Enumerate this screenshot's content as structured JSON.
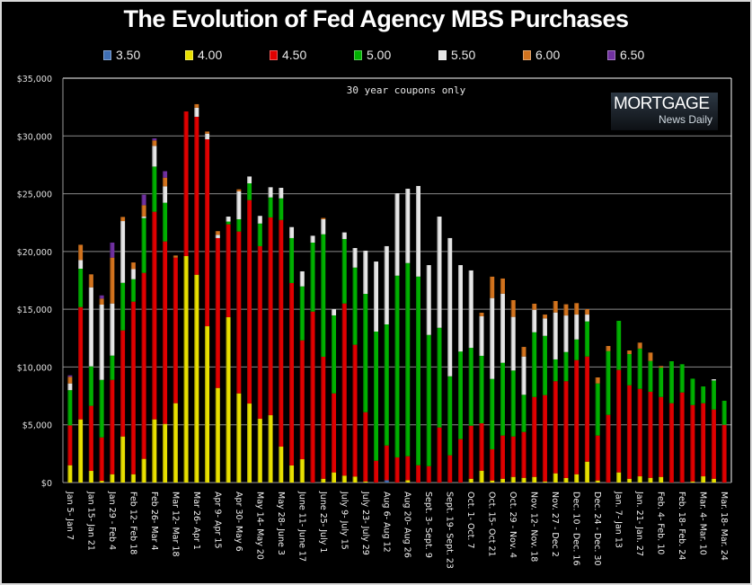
{
  "chart_data": {
    "type": "bar",
    "stacked": true,
    "title": "The Evolution of Fed Agency MBS Purchases",
    "annotation": "30 year coupons only",
    "logo": {
      "line1": "MORTGAGE",
      "line2": "News Daily"
    },
    "xlabel": "",
    "ylabel": "",
    "ylim": [
      0,
      35000
    ],
    "yticks": [
      0,
      5000,
      10000,
      15000,
      20000,
      25000,
      30000,
      35000
    ],
    "ytick_labels": [
      "$0",
      "$5,000",
      "$10,000",
      "$15,000",
      "$20,000",
      "$25,000",
      "$30,000",
      "$35,000"
    ],
    "grid": true,
    "legend_position": "top",
    "x_labels": [
      "Jan 5- Jan 7",
      "Jan 15- Jan 21",
      "Jan 29 - Feb 4",
      "Feb 12- Feb 18",
      "Feb 26- Mar 4",
      "Mar 12- Mar 18",
      "Mar 26- Apr 1",
      "Apr 9- Apr 15",
      "Apr 30- May 6",
      "May 14- May 20",
      "May 28- June 3",
      "June 11- June 17",
      "June 25- July 1",
      "July 9- July 15",
      "July 23- July 29",
      "Aug 6- Aug 12",
      "Aug 20- Aug 26",
      "Sept. 3- Sept. 9",
      "Sept. 19- Sept. 23",
      "Oct. 1- Oct. 7",
      "Oct. 15- Oct 21",
      "Oct. 29 - Nov. 4",
      "Nov. 12- Nov. 18",
      "Nov. 27 - Dec 2",
      "Dec. 10 - Dec. 16",
      "Dec. 24 - Dec. 30",
      "Jan. 7- Jan 13",
      "Jan. 21- Jan. 27",
      "Feb. 4- Feb. 10",
      "Feb. 18- Feb. 24",
      "Mar. 4- Mar. 10",
      "Mar. 18- Mar. 24"
    ],
    "label_every": 2,
    "bar_count": 63,
    "series": [
      {
        "name": "3.50",
        "color": "#3f6fb4",
        "values": [
          0,
          0,
          0,
          0,
          0,
          0,
          0,
          0,
          0,
          0,
          0,
          0,
          0,
          0,
          0,
          0,
          0,
          0,
          0,
          0,
          0,
          0,
          0,
          0,
          0,
          0,
          0,
          0,
          0,
          0,
          200,
          0,
          0,
          0,
          0,
          0,
          0,
          0,
          0,
          0,
          0,
          0,
          0,
          0,
          0,
          0,
          0,
          0,
          0,
          0,
          0,
          0,
          0,
          0,
          0,
          0,
          0,
          0,
          0,
          0,
          0,
          0,
          0
        ]
      },
      {
        "name": "4.00",
        "color": "#e8e000",
        "values": [
          1500,
          5470,
          1010,
          150,
          720,
          3990,
          720,
          2050,
          5470,
          5080,
          6870,
          19600,
          17990,
          13530,
          8190,
          14310,
          7720,
          6840,
          5520,
          5830,
          3110,
          1480,
          2020,
          0,
          330,
          880,
          600,
          520,
          100,
          0,
          0,
          0,
          200,
          0,
          0,
          0,
          0,
          0,
          330,
          1030,
          180,
          330,
          490,
          410,
          490,
          100,
          800,
          390,
          720,
          1810,
          180,
          0,
          880,
          330,
          540,
          410,
          490,
          0,
          0,
          100,
          540,
          330,
          0
        ]
      },
      {
        "name": "4.50",
        "color": "#e00000",
        "values": [
          3450,
          9720,
          5630,
          3760,
          8170,
          9180,
          14940,
          16100,
          17970,
          15790,
          12600,
          12520,
          13670,
          16180,
          12970,
          8040,
          14010,
          17610,
          14940,
          17120,
          19620,
          15790,
          10290,
          14800,
          10560,
          6840,
          14900,
          11410,
          5990,
          1890,
          3010,
          2180,
          2080,
          1500,
          1420,
          4770,
          2360,
          3760,
          4590,
          4100,
          2700,
          3740,
          3500,
          3970,
          6920,
          7470,
          7970,
          8380,
          9880,
          9100,
          3890,
          5860,
          8870,
          8090,
          7570,
          7450,
          6920,
          6870,
          7800,
          6610,
          6330,
          5990,
          5000
        ]
      },
      {
        "name": "5.00",
        "color": "#00b000",
        "values": [
          3050,
          3320,
          3420,
          4980,
          2100,
          4120,
          1940,
          4740,
          3910,
          3350,
          0,
          0,
          0,
          0,
          0,
          240,
          1060,
          1450,
          1960,
          1730,
          1870,
          3890,
          4670,
          5970,
          10600,
          6750,
          5580,
          6680,
          10240,
          11180,
          10480,
          15730,
          16720,
          16330,
          11360,
          8630,
          6840,
          7580,
          6740,
          5840,
          6090,
          6300,
          5710,
          3220,
          5600,
          5130,
          1890,
          2530,
          1790,
          3040,
          4510,
          5520,
          4250,
          2700,
          3490,
          2670,
          2540,
          3630,
          2440,
          2280,
          1450,
          2520,
          2080
        ]
      },
      {
        "name": "5.50",
        "color": "#e6e6e6",
        "values": [
          580,
          750,
          6840,
          6510,
          4510,
          5340,
          880,
          130,
          1790,
          1420,
          0,
          0,
          780,
          490,
          280,
          430,
          2410,
          590,
          660,
          880,
          910,
          950,
          1300,
          590,
          1300,
          540,
          570,
          1690,
          3740,
          6060,
          6770,
          7130,
          6430,
          7840,
          6040,
          9620,
          11960,
          7480,
          6700,
          3420,
          7000,
          5980,
          4640,
          3310,
          1950,
          1510,
          4060,
          3160,
          2150,
          590,
          0,
          0,
          0,
          0,
          0,
          0,
          0,
          0,
          0,
          0,
          0,
          100,
          0
        ]
      },
      {
        "name": "6.00",
        "color": "#d2731e",
        "values": [
          570,
          1320,
          1120,
          520,
          3970,
          360,
          570,
          990,
          470,
          750,
          180,
          0,
          310,
          180,
          320,
          0,
          180,
          0,
          0,
          0,
          0,
          0,
          0,
          0,
          110,
          0,
          0,
          0,
          0,
          0,
          0,
          0,
          0,
          0,
          0,
          0,
          0,
          0,
          0,
          310,
          1850,
          1310,
          1450,
          830,
          520,
          330,
          990,
          970,
          990,
          470,
          520,
          440,
          0,
          310,
          510,
          720,
          130,
          0,
          0,
          0,
          0,
          0,
          0
        ]
      },
      {
        "name": "6.50",
        "color": "#7030a0",
        "values": [
          130,
          0,
          0,
          280,
          1300,
          0,
          0,
          910,
          180,
          560,
          0,
          0,
          0,
          0,
          0,
          0,
          0,
          0,
          0,
          0,
          0,
          0,
          0,
          0,
          0,
          0,
          0,
          0,
          0,
          0,
          0,
          0,
          0,
          0,
          0,
          0,
          0,
          0,
          0,
          0,
          0,
          0,
          0,
          0,
          0,
          0,
          0,
          0,
          0,
          0,
          0,
          0,
          0,
          0,
          0,
          0,
          0,
          0,
          0,
          0,
          0,
          0,
          0
        ]
      }
    ]
  }
}
